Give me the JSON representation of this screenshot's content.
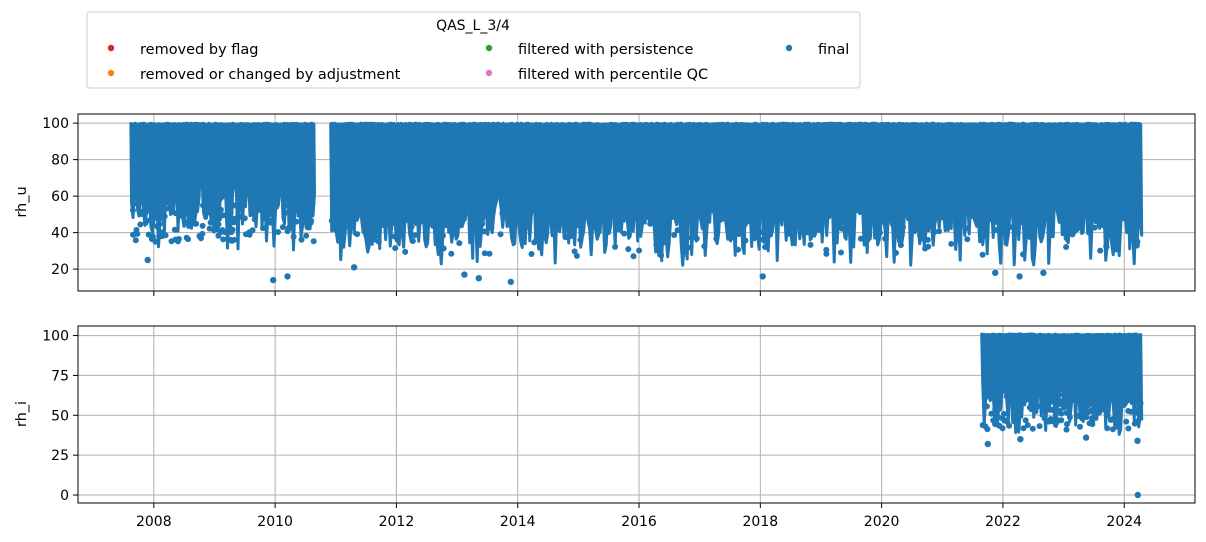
{
  "chart_data": {
    "type": "scatter",
    "legend": {
      "title": "QAS_L_3/4",
      "placement": "top",
      "entries": [
        {
          "label": "removed by flag",
          "color": "#d62728"
        },
        {
          "label": "removed or changed by adjustment",
          "color": "#ff7f0e"
        },
        {
          "label": "filtered with persistence",
          "color": "#2ca02c"
        },
        {
          "label": "filtered with percentile QC",
          "color": "#e377c2"
        },
        {
          "label": "final",
          "color": "#1f77b4"
        }
      ]
    },
    "x_ticks": [
      "2008",
      "2010",
      "2012",
      "2014",
      "2016",
      "2018",
      "2020",
      "2022",
      "2024"
    ],
    "xlim": [
      "2006-10-01",
      "2025-03-01"
    ],
    "panels": [
      {
        "ylabel": "rh_u",
        "ylim": [
          8,
          105
        ],
        "y_ticks": [
          20,
          40,
          60,
          80,
          100
        ],
        "grid": true,
        "series": [
          {
            "name": "final",
            "color": "#1f77b4",
            "segments": [
              {
                "start": "2007-08-15",
                "end": "2010-08-25",
                "ymax": 100,
                "ymin": 30
              },
              {
                "start": "2010-12-01",
                "end": "2024-04-15",
                "ymax": 100,
                "ymin": 22
              }
            ],
            "outliers": [
              {
                "x": "2009-12-20",
                "y": 14
              },
              {
                "x": "2010-03-15",
                "y": 16
              },
              {
                "x": "2013-11-20",
                "y": 13
              },
              {
                "x": "2013-05-10",
                "y": 15
              },
              {
                "x": "2013-02-15",
                "y": 17
              },
              {
                "x": "2018-01-15",
                "y": 16
              },
              {
                "x": "2022-04-10",
                "y": 16
              },
              {
                "x": "2021-11-15",
                "y": 18
              },
              {
                "x": "2022-09-01",
                "y": 18
              },
              {
                "x": "2011-04-20",
                "y": 21
              },
              {
                "x": "2007-11-25",
                "y": 25
              },
              {
                "x": "2024-03-15",
                "y": 33
              },
              {
                "x": "2024-03-18",
                "y": 35
              }
            ]
          }
        ]
      },
      {
        "ylabel": "rh_i",
        "ylim": [
          -5,
          106
        ],
        "y_ticks": [
          0,
          25,
          50,
          75,
          100
        ],
        "grid": true,
        "series": [
          {
            "name": "final",
            "color": "#1f77b4",
            "segments": [
              {
                "start": "2021-08-25",
                "end": "2024-04-15",
                "ymax": 101,
                "ymin": 36
              }
            ],
            "outliers": [
              {
                "x": "2021-10-01",
                "y": 32
              },
              {
                "x": "2022-04-15",
                "y": 35
              },
              {
                "x": "2023-05-15",
                "y": 36
              },
              {
                "x": "2024-03-20",
                "y": 34
              },
              {
                "x": "2024-03-22",
                "y": 0
              }
            ]
          }
        ]
      }
    ]
  }
}
